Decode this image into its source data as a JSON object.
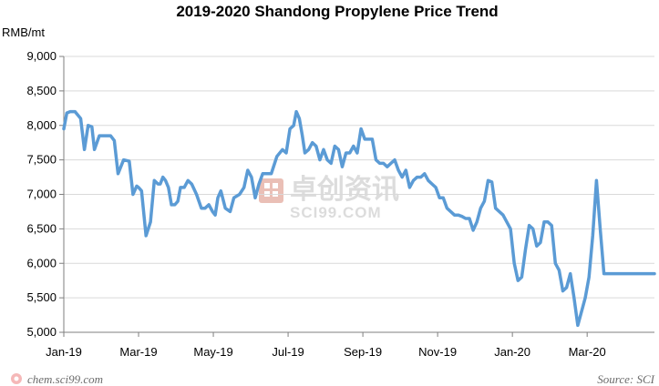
{
  "chart_data": {
    "type": "line",
    "title": "2019-2020 Shandong Propylene Price Trend",
    "ylabel": "RMB/mt",
    "xlabel": "",
    "ylim": [
      5000,
      9000
    ],
    "yticks": [
      5000,
      5500,
      6000,
      6500,
      7000,
      7500,
      8000,
      8500,
      9000
    ],
    "ytick_labels": [
      "5,000",
      "5,500",
      "6,000",
      "6,500",
      "7,000",
      "7,500",
      "8,000",
      "8,500",
      "9,000"
    ],
    "xlim": [
      0,
      15.8
    ],
    "xticks": [
      0,
      2,
      4,
      6,
      8,
      10,
      12,
      14
    ],
    "xtick_labels": [
      "Jan-19",
      "Mar-19",
      "May-19",
      "Jul-19",
      "Sep-19",
      "Nov-19",
      "Jan-20",
      "Mar-20"
    ],
    "grid": "horizontal",
    "series": [
      {
        "name": "Shandong Propylene Price",
        "color": "#5b9bd5",
        "x": [
          0,
          0.08,
          0.17,
          0.3,
          0.45,
          0.55,
          0.65,
          0.75,
          0.82,
          0.95,
          1.05,
          1.15,
          1.25,
          1.35,
          1.45,
          1.6,
          1.75,
          1.85,
          1.95,
          2.0,
          2.08,
          2.2,
          2.32,
          2.42,
          2.52,
          2.58,
          2.65,
          2.72,
          2.8,
          2.88,
          2.97,
          3.05,
          3.12,
          3.22,
          3.32,
          3.42,
          3.55,
          3.68,
          3.78,
          3.88,
          3.98,
          4.05,
          4.12,
          4.2,
          4.32,
          4.45,
          4.55,
          4.7,
          4.82,
          4.92,
          5.02,
          5.12,
          5.22,
          5.32,
          5.45,
          5.55,
          5.7,
          5.85,
          5.95,
          6.05,
          6.15,
          6.22,
          6.3,
          6.38,
          6.45,
          6.55,
          6.65,
          6.75,
          6.85,
          6.95,
          7.05,
          7.15,
          7.25,
          7.35,
          7.45,
          7.55,
          7.65,
          7.75,
          7.85,
          7.95,
          8.05,
          8.15,
          8.25,
          8.35,
          8.45,
          8.55,
          8.65,
          8.75,
          8.85,
          8.95,
          9.05,
          9.15,
          9.25,
          9.35,
          9.45,
          9.55,
          9.65,
          9.75,
          9.85,
          9.95,
          10.05,
          10.15,
          10.25,
          10.35,
          10.45,
          10.55,
          10.65,
          10.75,
          10.85,
          10.95,
          11.05,
          11.15,
          11.25,
          11.35,
          11.45,
          11.55,
          11.65,
          11.75,
          11.85,
          11.95,
          12.05,
          12.15,
          12.25,
          12.35,
          12.45,
          12.55,
          12.65,
          12.75,
          12.85,
          12.95,
          13.05,
          13.15,
          13.25,
          13.35,
          13.45,
          13.55,
          13.65,
          13.75,
          13.85,
          13.95,
          14.05,
          14.15,
          14.25,
          14.35,
          14.45,
          14.55,
          14.65,
          14.75,
          14.85,
          14.95,
          15.05,
          15.15,
          15.25,
          15.35,
          15.45,
          15.52,
          15.58,
          15.65,
          15.72,
          15.8
        ],
        "values": [
          7950,
          8180,
          8200,
          8200,
          8100,
          7650,
          8000,
          7980,
          7650,
          7850,
          7850,
          7850,
          7850,
          7780,
          7300,
          7500,
          7480,
          7000,
          7120,
          7100,
          7050,
          6400,
          6600,
          7200,
          7150,
          7150,
          7250,
          7200,
          7100,
          6850,
          6850,
          6900,
          7100,
          7100,
          7200,
          7150,
          7000,
          6800,
          6800,
          6850,
          6750,
          6700,
          6950,
          7050,
          6800,
          6750,
          6950,
          7000,
          7100,
          7350,
          7250,
          6950,
          7150,
          7300,
          7300,
          7300,
          7550,
          7650,
          7600,
          7950,
          8000,
          8200,
          8100,
          7850,
          7600,
          7650,
          7750,
          7700,
          7500,
          7650,
          7500,
          7450,
          7700,
          7650,
          7400,
          7600,
          7600,
          7700,
          7600,
          7950,
          7800,
          7800,
          7800,
          7500,
          7450,
          7450,
          7400,
          7450,
          7500,
          7350,
          7250,
          7350,
          7100,
          7200,
          7250,
          7250,
          7300,
          7200,
          7150,
          7100,
          6950,
          6950,
          6800,
          6750,
          6700,
          6700,
          6680,
          6650,
          6650,
          6480,
          6600,
          6800,
          6900,
          7200,
          7180,
          6800,
          6750,
          6700,
          6600,
          6500,
          6000,
          5750,
          5800,
          6200,
          6550,
          6500,
          6250,
          6300,
          6600,
          6600,
          6550,
          6000,
          5900,
          5600,
          5650,
          5850,
          5500,
          5100,
          5300,
          5500,
          5800,
          6400,
          7200,
          6500,
          5850,
          5850,
          5850,
          5850,
          5850,
          5850,
          5850,
          5850,
          5850,
          5850,
          5850,
          5850,
          5850,
          5850,
          5850,
          5850
        ]
      }
    ],
    "watermark": "卓创资讯 SCI99.COM"
  },
  "footer": {
    "source": "Source: SCI",
    "site": "chem.sci99.com"
  }
}
